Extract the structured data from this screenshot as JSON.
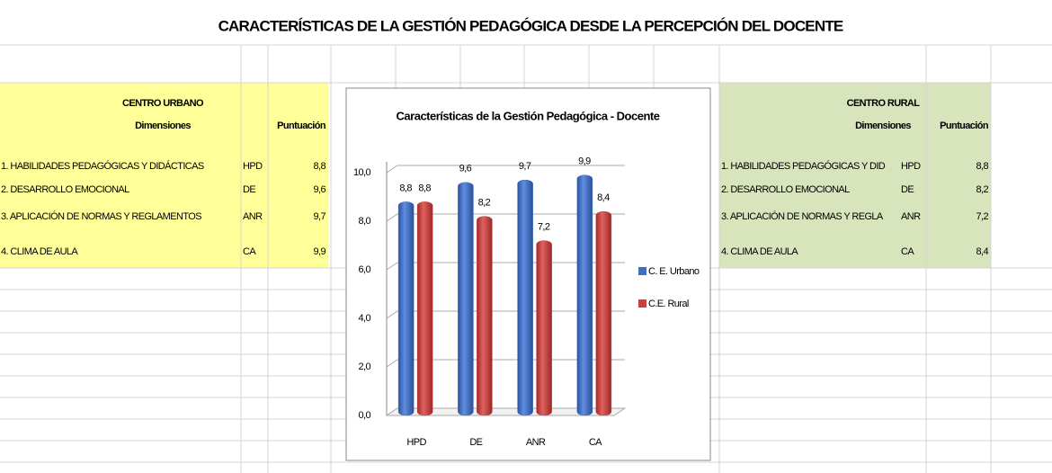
{
  "title": "CARACTERÍSTICAS DE LA GESTIÓN PEDAGÓGICA DESDE LA PERCEPCIÓN DEL DOCENTE",
  "urban": {
    "heading": "CENTRO URBANO",
    "columns": [
      "Dimensiones",
      "Puntuación"
    ],
    "rows": [
      [
        "1. HABILIDADES PEDAGÓGICAS Y DIDÁCTICAS",
        "HPD",
        "8,8"
      ],
      [
        "2. DESARROLLO EMOCIONAL",
        "DE",
        "9,6"
      ],
      [
        "3. APLICACIÓN DE NORMAS Y REGLAMENTOS",
        "ANR",
        "9,7"
      ],
      [
        "4. CLIMA DE AULA",
        "CA",
        "9,9"
      ]
    ]
  },
  "rural": {
    "heading": "CENTRO RURAL",
    "columns": [
      "Dimensiones",
      "Puntuación"
    ],
    "rows": [
      [
        "1. HABILIDADES PEDAGÓGICAS Y DID",
        "HPD",
        "8,8"
      ],
      [
        "2. DESARROLLO EMOCIONAL",
        "DE",
        "8,2"
      ],
      [
        "3. APLICACIÓN DE NORMAS Y REGLA",
        "ANR",
        "7,2"
      ],
      [
        "4. CLIMA DE AULA",
        "CA",
        "8,4"
      ]
    ]
  },
  "chart_data": {
    "type": "bar",
    "title": "Características de la Gestión Pedagógica - Docente",
    "categories": [
      "HPD",
      "DE",
      "ANR",
      "CA"
    ],
    "series": [
      {
        "name": "C. E. Urbano",
        "color": "#3f6fc0",
        "values": [
          8.8,
          9.6,
          9.7,
          9.9
        ],
        "value_labels": [
          "8,8",
          "9,6",
          "9,7",
          "9,9"
        ]
      },
      {
        "name": "C.E. Rural",
        "color": "#c9403d",
        "values": [
          8.8,
          8.2,
          7.2,
          8.4
        ],
        "value_labels": [
          "8,8",
          "8,2",
          "7,2",
          "8,4"
        ]
      }
    ],
    "ylim": [
      0,
      10
    ],
    "yticks": [
      {
        "value": 0,
        "label": "0,0"
      },
      {
        "value": 2,
        "label": "2,0"
      },
      {
        "value": 4,
        "label": "4,0"
      },
      {
        "value": 6,
        "label": "6,0"
      },
      {
        "value": 8,
        "label": "8,0"
      },
      {
        "value": 10,
        "label": "10,0"
      }
    ],
    "grid": true,
    "legend": "right"
  }
}
